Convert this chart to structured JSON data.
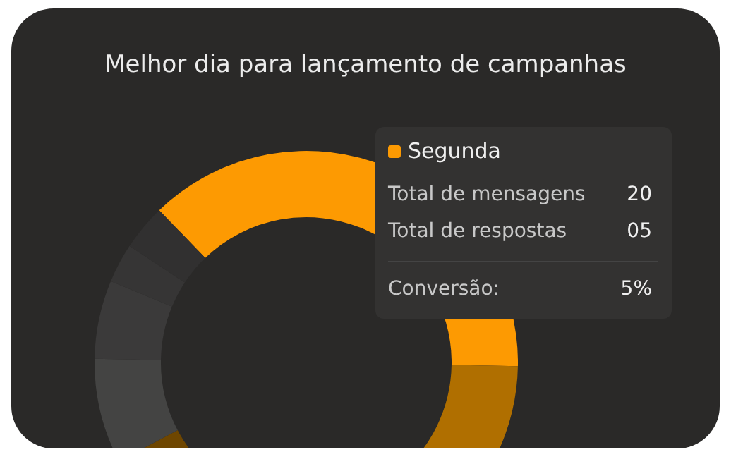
{
  "chart_data": {
    "type": "donut",
    "title": "Melhor dia para lançamento de campanhas",
    "categories": [
      "Segunda",
      null,
      null,
      null,
      null,
      null,
      null
    ],
    "values": [
      37.5,
      28,
      14,
      8,
      6,
      3,
      3.5
    ],
    "colors": [
      "#fd9a02",
      "#b06f00",
      "#6e4600",
      "#444443",
      "#3b3a3a",
      "#363535",
      "#313030"
    ],
    "legend": "top right",
    "annotations": [
      "Total de mensagens",
      "20",
      "Total de respostas",
      "05",
      "Conversão:",
      "5%"
    ]
  }
}
